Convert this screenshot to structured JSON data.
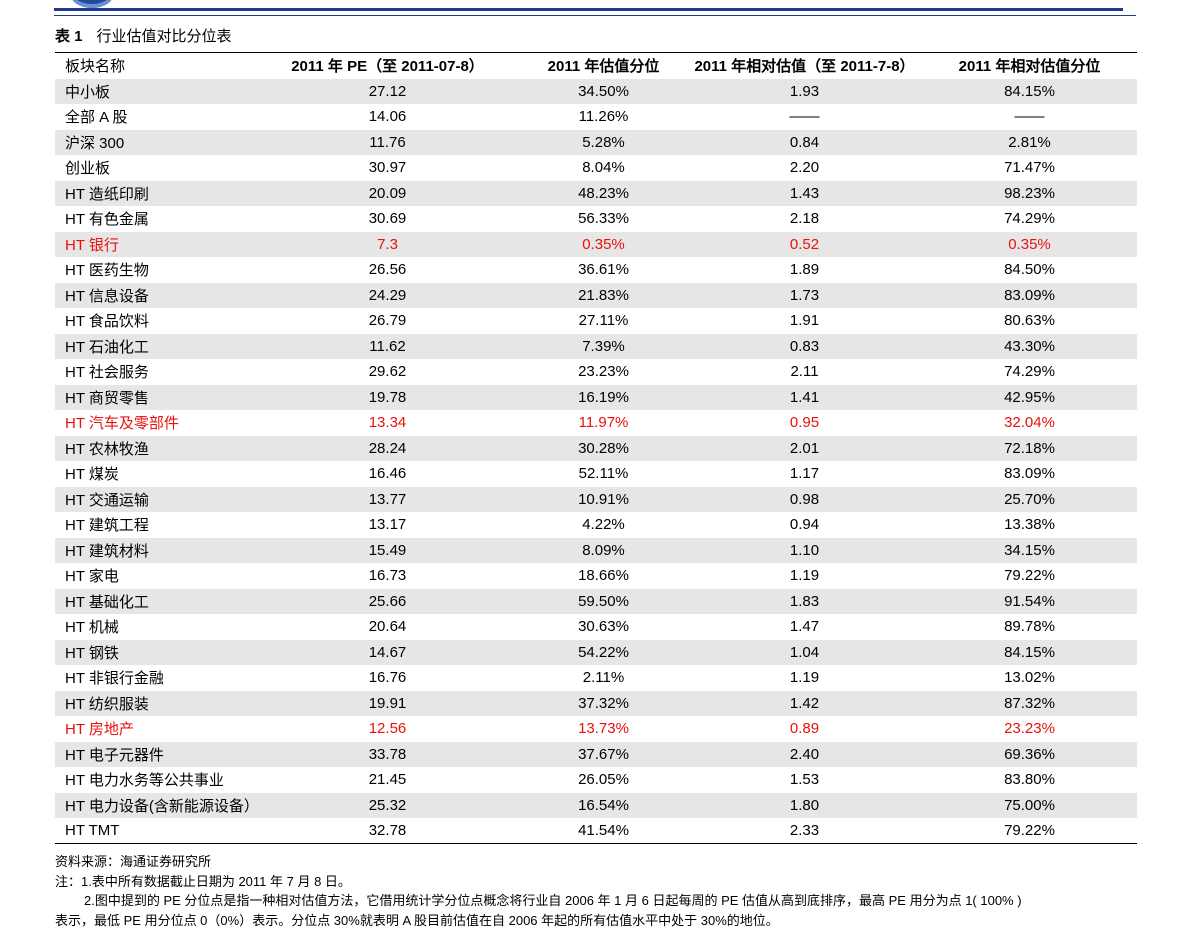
{
  "title": {
    "prefix": "表 1",
    "text": "行业估值对比分位表"
  },
  "columns": [
    "板块名称",
    "2011 年 PE（至 2011-07-8）",
    "2011 年估值分位",
    "2011 年相对估值（至 2011-7-8）",
    "2011 年相对估值分位"
  ],
  "rows": [
    {
      "name": "中小板",
      "pe": "27.12",
      "pe_pct": "34.50%",
      "rel": "1.93",
      "rel_pct": "84.15%",
      "highlight": false
    },
    {
      "name": "全部 A 股",
      "pe": "14.06",
      "pe_pct": "11.26%",
      "rel": "——",
      "rel_pct": "——",
      "highlight": false
    },
    {
      "name": "沪深 300",
      "pe": "11.76",
      "pe_pct": "5.28%",
      "rel": "0.84",
      "rel_pct": "2.81%",
      "highlight": false
    },
    {
      "name": "创业板",
      "pe": "30.97",
      "pe_pct": "8.04%",
      "rel": "2.20",
      "rel_pct": "71.47%",
      "highlight": false
    },
    {
      "name": "HT 造纸印刷",
      "pe": "20.09",
      "pe_pct": "48.23%",
      "rel": "1.43",
      "rel_pct": "98.23%",
      "highlight": false
    },
    {
      "name": "HT 有色金属",
      "pe": "30.69",
      "pe_pct": "56.33%",
      "rel": "2.18",
      "rel_pct": "74.29%",
      "highlight": false
    },
    {
      "name": "HT 银行",
      "pe": "7.3",
      "pe_pct": "0.35%",
      "rel": "0.52",
      "rel_pct": "0.35%",
      "highlight": true
    },
    {
      "name": "HT 医药生物",
      "pe": "26.56",
      "pe_pct": "36.61%",
      "rel": "1.89",
      "rel_pct": "84.50%",
      "highlight": false
    },
    {
      "name": "HT 信息设备",
      "pe": "24.29",
      "pe_pct": "21.83%",
      "rel": "1.73",
      "rel_pct": "83.09%",
      "highlight": false
    },
    {
      "name": "HT 食品饮料",
      "pe": "26.79",
      "pe_pct": "27.11%",
      "rel": "1.91",
      "rel_pct": "80.63%",
      "highlight": false
    },
    {
      "name": "HT 石油化工",
      "pe": "11.62",
      "pe_pct": "7.39%",
      "rel": "0.83",
      "rel_pct": "43.30%",
      "highlight": false
    },
    {
      "name": "HT 社会服务",
      "pe": "29.62",
      "pe_pct": "23.23%",
      "rel": "2.11",
      "rel_pct": "74.29%",
      "highlight": false
    },
    {
      "name": "HT 商贸零售",
      "pe": "19.78",
      "pe_pct": "16.19%",
      "rel": "1.41",
      "rel_pct": "42.95%",
      "highlight": false
    },
    {
      "name": "HT 汽车及零部件",
      "pe": "13.34",
      "pe_pct": "11.97%",
      "rel": "0.95",
      "rel_pct": "32.04%",
      "highlight": true
    },
    {
      "name": "HT 农林牧渔",
      "pe": "28.24",
      "pe_pct": "30.28%",
      "rel": "2.01",
      "rel_pct": "72.18%",
      "highlight": false
    },
    {
      "name": "HT 煤炭",
      "pe": "16.46",
      "pe_pct": "52.11%",
      "rel": "1.17",
      "rel_pct": "83.09%",
      "highlight": false
    },
    {
      "name": "HT 交通运输",
      "pe": "13.77",
      "pe_pct": "10.91%",
      "rel": "0.98",
      "rel_pct": "25.70%",
      "highlight": false
    },
    {
      "name": "HT 建筑工程",
      "pe": "13.17",
      "pe_pct": "4.22%",
      "rel": "0.94",
      "rel_pct": "13.38%",
      "highlight": false
    },
    {
      "name": "HT 建筑材料",
      "pe": "15.49",
      "pe_pct": "8.09%",
      "rel": "1.10",
      "rel_pct": "34.15%",
      "highlight": false
    },
    {
      "name": "HT 家电",
      "pe": "16.73",
      "pe_pct": "18.66%",
      "rel": "1.19",
      "rel_pct": "79.22%",
      "highlight": false
    },
    {
      "name": "HT 基础化工",
      "pe": "25.66",
      "pe_pct": "59.50%",
      "rel": "1.83",
      "rel_pct": "91.54%",
      "highlight": false
    },
    {
      "name": "HT 机械",
      "pe": "20.64",
      "pe_pct": "30.63%",
      "rel": "1.47",
      "rel_pct": "89.78%",
      "highlight": false
    },
    {
      "name": "HT 钢铁",
      "pe": "14.67",
      "pe_pct": "54.22%",
      "rel": "1.04",
      "rel_pct": "84.15%",
      "highlight": false
    },
    {
      "name": "HT 非银行金融",
      "pe": "16.76",
      "pe_pct": "2.11%",
      "rel": "1.19",
      "rel_pct": "13.02%",
      "highlight": false
    },
    {
      "name": "HT 纺织服装",
      "pe": "19.91",
      "pe_pct": "37.32%",
      "rel": "1.42",
      "rel_pct": "87.32%",
      "highlight": false
    },
    {
      "name": "HT 房地产",
      "pe": "12.56",
      "pe_pct": "13.73%",
      "rel": "0.89",
      "rel_pct": "23.23%",
      "highlight": true
    },
    {
      "name": "HT 电子元器件",
      "pe": "33.78",
      "pe_pct": "37.67%",
      "rel": "2.40",
      "rel_pct": "69.36%",
      "highlight": false
    },
    {
      "name": "HT 电力水务等公共事业",
      "pe": "21.45",
      "pe_pct": "26.05%",
      "rel": "1.53",
      "rel_pct": "83.80%",
      "highlight": false
    },
    {
      "name": "HT 电力设备(含新能源设备）",
      "pe": "25.32",
      "pe_pct": "16.54%",
      "rel": "1.80",
      "rel_pct": "75.00%",
      "highlight": false
    },
    {
      "name": "HT TMT",
      "pe": "32.78",
      "pe_pct": "41.54%",
      "rel": "2.33",
      "rel_pct": "79.22%",
      "highlight": false
    }
  ],
  "colors": {
    "highlight": "#e8110b",
    "stripe": "#e6e6e6",
    "brand": "#1f3b8f"
  },
  "notes": {
    "source": "资料来源：海通证券研究所",
    "note1": "注：1.表中所有数据截止日期为 2011 年 7 月 8 日。",
    "note2a": "2.图中提到的 PE 分位点是指一种相对估值方法，它借用统计学分位点概念将行业自 2006 年 1 月 6 日起每周的 PE 估值从高到底排序，最高 PE 用分为点 1( 100% )",
    "note2b": "表示，最低 PE 用分位点 0（0%）表示。分位点 30%就表明 A 股目前估值在自 2006 年起的所有估值水平中处于 30%的地位。"
  }
}
